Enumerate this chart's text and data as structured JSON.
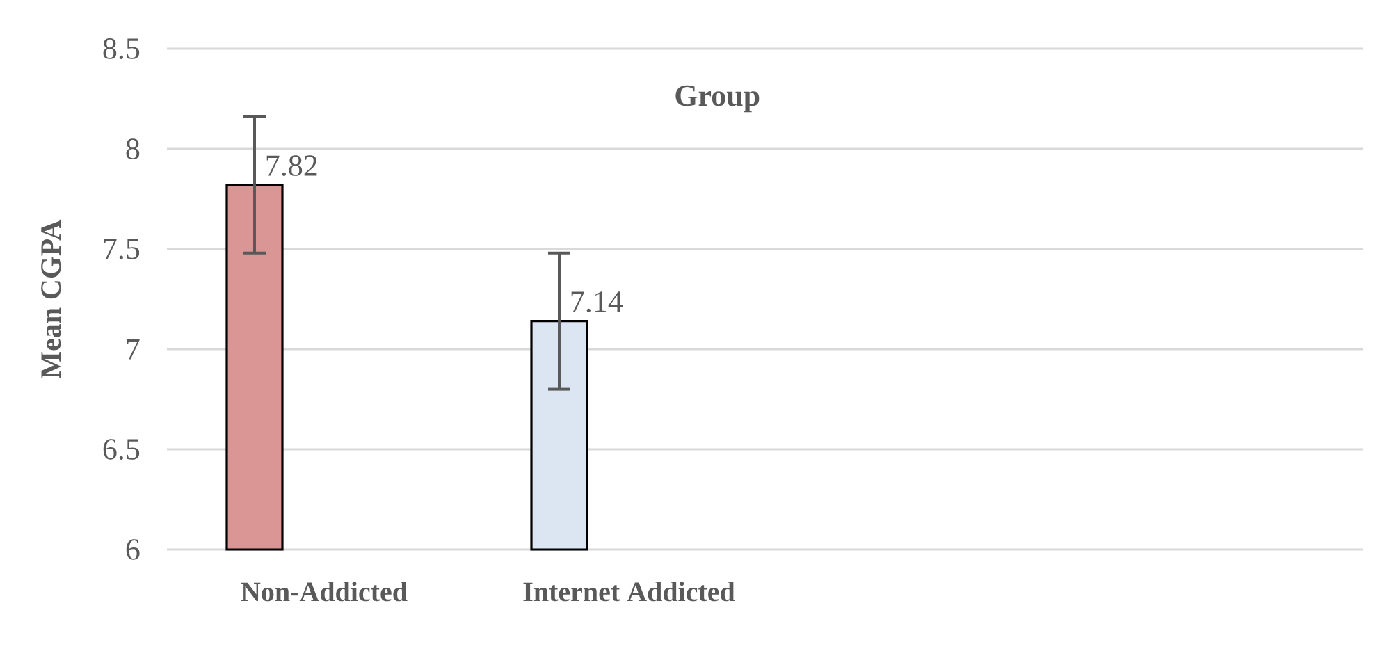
{
  "chart_data": {
    "type": "bar",
    "title": "Group",
    "ylabel": "Mean CGPA",
    "categories": [
      "Non-Addicted",
      "Internet Addicted",
      null,
      null
    ],
    "values": [
      7.82,
      7.14,
      null,
      null
    ],
    "errors": [
      0.34,
      0.34,
      null,
      null
    ],
    "colors": [
      "#d99694",
      "#dce6f2",
      "#ffffff",
      "#ffffff"
    ],
    "ylim": [
      6,
      8.5
    ],
    "yticks": [
      6,
      6.5,
      7,
      7.5,
      8,
      8.5
    ],
    "grid": "y",
    "data_labels": true
  }
}
